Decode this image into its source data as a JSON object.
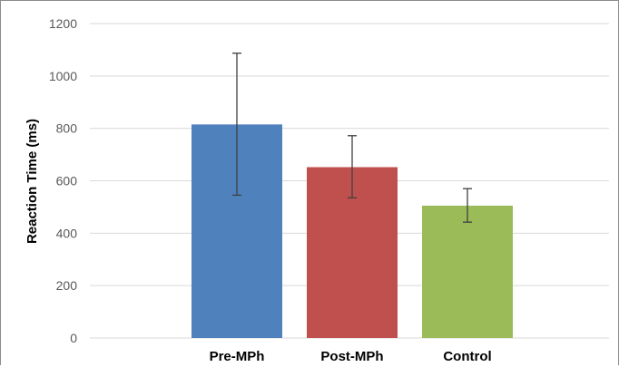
{
  "chart_data": {
    "type": "bar",
    "title": "",
    "xlabel": "",
    "ylabel": "Reaction Time (ms)",
    "ylim": [
      0,
      1200
    ],
    "yticks": [
      0,
      200,
      400,
      600,
      800,
      1000,
      1200
    ],
    "grid": true,
    "legend": "none",
    "categories": [
      "Pre-MPh",
      "Post-MPh",
      "Control"
    ],
    "values": [
      815,
      652,
      505
    ],
    "error_bars": [
      {
        "low": 545,
        "high": 1087
      },
      {
        "low": 535,
        "high": 772
      },
      {
        "low": 442,
        "high": 570
      }
    ],
    "colors": [
      "#4f81bd",
      "#c0504d",
      "#9bbb59"
    ],
    "errorbar_color": "#404040",
    "gridline_color": "#d9d9d9"
  }
}
